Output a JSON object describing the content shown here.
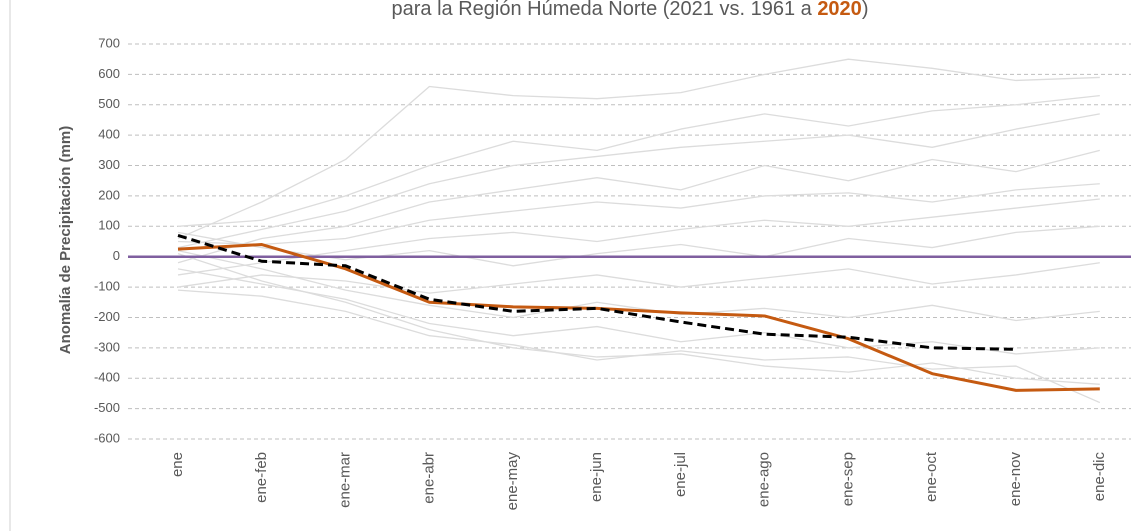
{
  "chart_data": {
    "type": "line",
    "title_parts": [
      "para la Región Húmeda Norte (2021 vs. 1961 a ",
      "2020",
      ")"
    ],
    "title_highlight_color": "#c55a11",
    "y_label": "Anomalía de Precipitación (mm)",
    "categories": [
      "ene",
      "ene-feb",
      "ene-mar",
      "ene-abr",
      "ene-may",
      "ene-jun",
      "ene-jul",
      "ene-ago",
      "ene-sep",
      "ene-oct",
      "ene-nov",
      "ene-dic"
    ],
    "ylim": [
      -600,
      700
    ],
    "yticks": [
      -600,
      -500,
      -400,
      -300,
      -200,
      -100,
      0,
      100,
      200,
      300,
      400,
      500,
      600,
      700
    ],
    "grid": true,
    "zero_line_color": "#7f5f9f",
    "series": [
      {
        "color": "#dcdcdc",
        "values": [
          60,
          180,
          320,
          560,
          530,
          520,
          540,
          600,
          650,
          620,
          580,
          590
        ]
      },
      {
        "color": "#dcdcdc",
        "values": [
          100,
          120,
          200,
          300,
          380,
          350,
          420,
          470,
          430,
          480,
          500,
          530
        ]
      },
      {
        "color": "#dcdcdc",
        "values": [
          30,
          90,
          150,
          240,
          300,
          330,
          360,
          380,
          400,
          360,
          420,
          470
        ]
      },
      {
        "color": "#dcdcdc",
        "values": [
          -20,
          60,
          100,
          180,
          220,
          260,
          220,
          300,
          250,
          320,
          280,
          350
        ]
      },
      {
        "color": "#dcdcdc",
        "values": [
          50,
          40,
          60,
          120,
          150,
          180,
          160,
          200,
          210,
          180,
          220,
          240
        ]
      },
      {
        "color": "#dcdcdc",
        "values": [
          -60,
          -20,
          20,
          60,
          80,
          50,
          90,
          120,
          100,
          130,
          160,
          190
        ]
      },
      {
        "color": "#dcdcdc",
        "values": [
          80,
          30,
          -10,
          20,
          -30,
          10,
          40,
          0,
          60,
          30,
          80,
          100
        ]
      },
      {
        "color": "#dcdcdc",
        "values": [
          -100,
          -60,
          -80,
          -120,
          -90,
          -60,
          -100,
          -70,
          -40,
          -90,
          -60,
          -20
        ]
      },
      {
        "color": "#dcdcdc",
        "values": [
          20,
          -40,
          -110,
          -160,
          -200,
          -150,
          -190,
          -170,
          -200,
          -160,
          -210,
          -180
        ]
      },
      {
        "color": "#dcdcdc",
        "values": [
          -40,
          -90,
          -140,
          -220,
          -260,
          -230,
          -280,
          -250,
          -300,
          -280,
          -320,
          -300
        ]
      },
      {
        "color": "#dcdcdc",
        "values": [
          10,
          -80,
          -150,
          -240,
          -300,
          -330,
          -320,
          -360,
          -380,
          -350,
          -400,
          -420
        ]
      },
      {
        "color": "#dcdcdc",
        "values": [
          -110,
          -130,
          -180,
          -260,
          -290,
          -340,
          -310,
          -340,
          -330,
          -370,
          -360,
          -480
        ]
      },
      {
        "color": "#c55a11",
        "values": [
          25,
          40,
          -40,
          -150,
          -165,
          -170,
          -185,
          -195,
          -270,
          -385,
          -440,
          -435
        ]
      },
      {
        "color": "#000000",
        "dash": true,
        "values": [
          70,
          -15,
          -30,
          -140,
          -180,
          -170,
          -215,
          -255,
          -265,
          -300,
          -305,
          null
        ]
      }
    ]
  }
}
